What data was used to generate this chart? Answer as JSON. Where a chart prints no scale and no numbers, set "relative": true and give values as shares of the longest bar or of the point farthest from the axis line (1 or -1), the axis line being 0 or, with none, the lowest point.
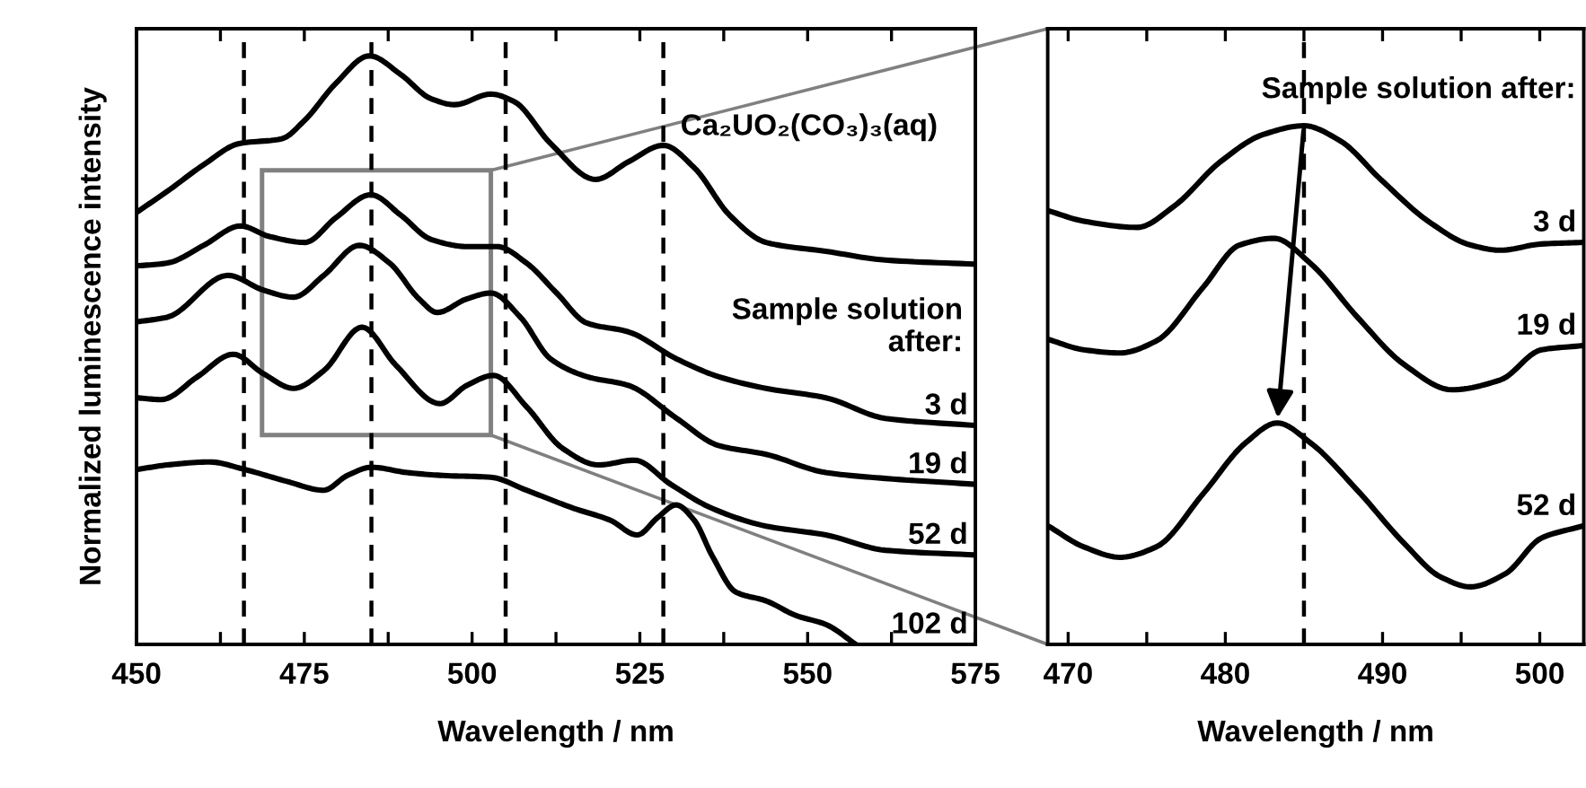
{
  "chart_data": [
    {
      "type": "line",
      "relative": true,
      "xlabel": "Wavelength / nm",
      "ylabel": "Normalized luminescence intensity",
      "tick_labels": "x",
      "legend": false,
      "grid": false,
      "line_style": "solid",
      "marker": "none",
      "xlim": [
        450,
        575
      ],
      "xticks": [
        450,
        {
          "value": 462.5,
          "label": null
        },
        475,
        {
          "value": 487.5,
          "label": null
        },
        500,
        {
          "value": 512.5,
          "label": null
        },
        525,
        {
          "value": 537.5,
          "label": null
        },
        550,
        {
          "value": 562.5,
          "label": null
        },
        575
      ],
      "ref_lines": [
        {
          "axis": "x",
          "value": 466,
          "line_style": "dashed",
          "color": "#000000"
        },
        {
          "axis": "x",
          "value": 485,
          "line_style": "dashed",
          "color": "#000000"
        },
        {
          "axis": "x",
          "value": 505,
          "line_style": "dashed",
          "color": "#000000"
        },
        {
          "axis": "x",
          "value": 528.5,
          "line_style": "dashed",
          "color": "#000000"
        }
      ],
      "annotations": [
        "Ca₂UO₂(CO₃)₃(aq)",
        "Sample solution\nafter:"
      ],
      "series": [
        {
          "color": "#000000",
          "x": [
            450,
            454.6,
            460.0,
            465.3,
            471.6,
            475.1,
            479.6,
            484.7,
            489.4,
            493.9,
            497.4,
            502.8,
            506.3,
            511.7,
            518.4,
            523.3,
            528.5,
            533.1,
            538.4,
            543.8,
            552.7,
            561.6,
            575
          ],
          "values": [
            0.734,
            0.77,
            0.815,
            0.851,
            0.859,
            0.891,
            0.952,
            1.0,
            0.968,
            0.927,
            0.917,
            0.935,
            0.922,
            0.851,
            0.79,
            0.82,
            0.848,
            0.81,
            0.729,
            0.683,
            0.668,
            0.653,
            0.646
          ]
        },
        {
          "name": "3 d",
          "color": "#000000",
          "x": [
            450,
            454.6,
            460.0,
            465.5,
            469.8,
            475.1,
            479.6,
            484.9,
            489.4,
            493.9,
            499.2,
            503.7,
            508.1,
            512.6,
            517.1,
            523.3,
            530.5,
            536.7,
            543.8,
            552.7,
            561.6,
            575
          ],
          "values": [
            0.643,
            0.648,
            0.678,
            0.711,
            0.693,
            0.683,
            0.724,
            0.764,
            0.729,
            0.688,
            0.676,
            0.676,
            0.648,
            0.597,
            0.546,
            0.531,
            0.485,
            0.455,
            0.435,
            0.419,
            0.384,
            0.372
          ]
        },
        {
          "name": "19 d",
          "color": "#000000",
          "x": [
            450,
            454.6,
            463.6,
            468.9,
            473.4,
            477.9,
            483.2,
            487.7,
            492.1,
            494.8,
            499.2,
            502.8,
            507.2,
            511.7,
            517.1,
            523.3,
            530.5,
            536.7,
            543.8,
            552.7,
            561.6,
            575
          ],
          "values": [
            0.548,
            0.556,
            0.627,
            0.602,
            0.59,
            0.627,
            0.678,
            0.648,
            0.587,
            0.564,
            0.587,
            0.597,
            0.556,
            0.485,
            0.455,
            0.44,
            0.384,
            0.338,
            0.323,
            0.292,
            0.282,
            0.272
          ]
        },
        {
          "name": "52 d",
          "color": "#000000",
          "x": [
            450,
            453.7,
            459.1,
            464.4,
            468.9,
            473.4,
            477.9,
            483.6,
            488.6,
            495.2,
            499.2,
            503.2,
            508.1,
            513.5,
            518.8,
            524.2,
            529.6,
            535.8,
            543.8,
            552.7,
            561.6,
            575
          ],
          "values": [
            0.419,
            0.416,
            0.455,
            0.493,
            0.46,
            0.435,
            0.465,
            0.539,
            0.475,
            0.409,
            0.44,
            0.457,
            0.404,
            0.333,
            0.305,
            0.313,
            0.272,
            0.231,
            0.201,
            0.186,
            0.16,
            0.152
          ]
        },
        {
          "name": "102 d",
          "color": "#000000",
          "x": [
            450,
            454.6,
            460.9,
            466.2,
            472.4,
            477.9,
            481.4,
            485.0,
            490.3,
            495.7,
            502.8,
            508.1,
            515.2,
            520.6,
            524.6,
            527.7,
            530.4,
            533.1,
            535.8,
            539.3,
            543.8,
            548.3,
            552.7,
            557.2
          ],
          "values": [
            0.297,
            0.305,
            0.31,
            0.297,
            0.277,
            0.262,
            0.287,
            0.301,
            0.292,
            0.287,
            0.284,
            0.262,
            0.231,
            0.211,
            0.186,
            0.216,
            0.237,
            0.211,
            0.15,
            0.089,
            0.074,
            0.049,
            0.034,
            0.0
          ]
        }
      ]
    },
    {
      "type": "line",
      "relative": true,
      "xlabel": "Wavelength / nm",
      "tick_labels": "x",
      "legend": false,
      "grid": false,
      "line_style": "solid",
      "marker": "none",
      "xlim": [
        468.7,
        502.8
      ],
      "xticks": [
        470,
        {
          "value": 475,
          "label": null
        },
        480,
        {
          "value": 485,
          "label": null
        },
        490,
        {
          "value": 495,
          "label": null
        },
        500
      ],
      "ref_lines": [
        {
          "axis": "x",
          "value": 485,
          "line_style": "dashed",
          "color": "#000000"
        }
      ],
      "annotations": [
        "Sample solution after:"
      ],
      "series": [
        {
          "name": "3 d",
          "color": "#000000",
          "x": [
            468.75,
            471.0,
            474.4,
            476.7,
            479.7,
            482.4,
            485.0,
            487.3,
            489.9,
            492.9,
            495.6,
            497.5,
            500.1,
            502.7
          ],
          "values": [
            0.836,
            0.816,
            0.804,
            0.844,
            0.931,
            0.983,
            1.0,
            0.971,
            0.896,
            0.816,
            0.77,
            0.76,
            0.772,
            0.775
          ]
        },
        {
          "name": "19 d",
          "color": "#000000",
          "x": [
            468.75,
            471.0,
            473.3,
            475.6,
            478.6,
            480.9,
            483.1,
            485.4,
            488.4,
            491.4,
            494.4,
            497.5,
            500.1,
            502.7
          ],
          "values": [
            0.588,
            0.568,
            0.562,
            0.585,
            0.689,
            0.77,
            0.783,
            0.735,
            0.631,
            0.539,
            0.491,
            0.51,
            0.568,
            0.576
          ]
        },
        {
          "name": "52 d",
          "color": "#000000",
          "x": [
            468.75,
            471.0,
            473.3,
            475.6,
            478.6,
            481.3,
            483.3,
            485.4,
            488.4,
            491.4,
            493.7,
            495.6,
            497.8,
            500.1,
            502.7
          ],
          "values": [
            0.228,
            0.188,
            0.168,
            0.188,
            0.291,
            0.389,
            0.427,
            0.389,
            0.297,
            0.194,
            0.13,
            0.111,
            0.136,
            0.205,
            0.228
          ]
        }
      ]
    }
  ]
}
